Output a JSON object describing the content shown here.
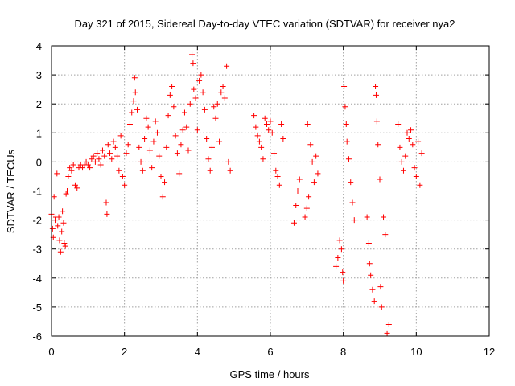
{
  "chart_data": {
    "type": "scatter",
    "title": "Day 321 of 2015, Sidereal Day-to-day VTEC variation (SDTVAR) for receiver nya2",
    "xlabel": "GPS time / hours",
    "ylabel": "SDTVAR / TECUs",
    "xlim": [
      0,
      12
    ],
    "ylim": [
      -6,
      4
    ],
    "x_ticks": [
      0,
      2,
      4,
      6,
      8,
      10,
      12
    ],
    "y_ticks": [
      -6,
      -5,
      -4,
      -3,
      -2,
      -1,
      0,
      1,
      2,
      3,
      4
    ],
    "x_tick_labels": [
      "0",
      "2",
      "4",
      "6",
      "8",
      "10",
      "12"
    ],
    "y_tick_labels": [
      "-6",
      "-5",
      "-4",
      "-3",
      "-2",
      "-1",
      "0",
      "1",
      "2",
      "3",
      "4"
    ],
    "grid": true,
    "marker": "+",
    "marker_color": "#ff0000",
    "series": [
      {
        "name": "nya2",
        "points": [
          [
            0.0,
            -1.8
          ],
          [
            0.03,
            -2.3
          ],
          [
            0.05,
            -2.6
          ],
          [
            0.07,
            -1.2
          ],
          [
            0.1,
            -2.0
          ],
          [
            0.12,
            -1.9
          ],
          [
            0.15,
            -0.4
          ],
          [
            0.17,
            -2.2
          ],
          [
            0.2,
            -1.9
          ],
          [
            0.22,
            -2.7
          ],
          [
            0.25,
            -3.1
          ],
          [
            0.28,
            -2.4
          ],
          [
            0.3,
            -1.7
          ],
          [
            0.33,
            -2.1
          ],
          [
            0.35,
            -2.8
          ],
          [
            0.38,
            -2.9
          ],
          [
            0.4,
            -1.1
          ],
          [
            0.43,
            -1.0
          ],
          [
            0.46,
            -0.5
          ],
          [
            0.5,
            -0.2
          ],
          [
            0.55,
            -0.3
          ],
          [
            0.6,
            -0.1
          ],
          [
            0.65,
            -0.8
          ],
          [
            0.7,
            -0.9
          ],
          [
            0.75,
            -0.2
          ],
          [
            0.8,
            -0.1
          ],
          [
            0.85,
            -0.2
          ],
          [
            0.9,
            -0.1
          ],
          [
            0.95,
            0.0
          ],
          [
            1.0,
            -0.1
          ],
          [
            1.05,
            -0.2
          ],
          [
            1.1,
            0.1
          ],
          [
            1.15,
            0.2
          ],
          [
            1.2,
            0.0
          ],
          [
            1.25,
            0.3
          ],
          [
            1.3,
            0.1
          ],
          [
            1.35,
            -0.1
          ],
          [
            1.4,
            0.4
          ],
          [
            1.45,
            0.2
          ],
          [
            1.5,
            -1.4
          ],
          [
            1.52,
            -1.8
          ],
          [
            1.55,
            0.6
          ],
          [
            1.6,
            0.3
          ],
          [
            1.65,
            0.1
          ],
          [
            1.7,
            0.7
          ],
          [
            1.75,
            0.5
          ],
          [
            1.8,
            0.2
          ],
          [
            1.85,
            -0.3
          ],
          [
            1.9,
            0.9
          ],
          [
            1.95,
            -0.5
          ],
          [
            2.0,
            -0.8
          ],
          [
            2.05,
            0.3
          ],
          [
            2.1,
            0.6
          ],
          [
            2.15,
            1.3
          ],
          [
            2.2,
            1.7
          ],
          [
            2.25,
            2.1
          ],
          [
            2.28,
            2.9
          ],
          [
            2.3,
            2.4
          ],
          [
            2.35,
            1.8
          ],
          [
            2.4,
            0.5
          ],
          [
            2.45,
            0.0
          ],
          [
            2.5,
            -0.3
          ],
          [
            2.55,
            0.8
          ],
          [
            2.6,
            1.5
          ],
          [
            2.65,
            1.2
          ],
          [
            2.7,
            0.4
          ],
          [
            2.75,
            -0.2
          ],
          [
            2.8,
            0.7
          ],
          [
            2.85,
            1.4
          ],
          [
            2.9,
            1.0
          ],
          [
            2.95,
            0.2
          ],
          [
            3.0,
            -0.5
          ],
          [
            3.05,
            -1.2
          ],
          [
            3.1,
            -0.7
          ],
          [
            3.15,
            0.5
          ],
          [
            3.2,
            1.6
          ],
          [
            3.25,
            2.3
          ],
          [
            3.3,
            2.6
          ],
          [
            3.35,
            1.9
          ],
          [
            3.4,
            0.9
          ],
          [
            3.45,
            0.3
          ],
          [
            3.5,
            -0.4
          ],
          [
            3.55,
            0.6
          ],
          [
            3.6,
            1.1
          ],
          [
            3.65,
            1.7
          ],
          [
            3.7,
            1.2
          ],
          [
            3.75,
            0.4
          ],
          [
            3.8,
            2.0
          ],
          [
            3.85,
            3.7
          ],
          [
            3.88,
            3.4
          ],
          [
            3.9,
            2.5
          ],
          [
            3.95,
            2.2
          ],
          [
            4.0,
            1.1
          ],
          [
            4.05,
            2.8
          ],
          [
            4.1,
            3.0
          ],
          [
            4.15,
            2.4
          ],
          [
            4.2,
            1.8
          ],
          [
            4.25,
            0.8
          ],
          [
            4.3,
            0.1
          ],
          [
            4.35,
            -0.3
          ],
          [
            4.4,
            0.5
          ],
          [
            4.45,
            1.9
          ],
          [
            4.5,
            1.5
          ],
          [
            4.55,
            2.0
          ],
          [
            4.6,
            0.7
          ],
          [
            4.65,
            2.4
          ],
          [
            4.7,
            2.6
          ],
          [
            4.75,
            2.2
          ],
          [
            4.8,
            3.3
          ],
          [
            4.85,
            0.0
          ],
          [
            4.9,
            -0.3
          ],
          [
            5.55,
            1.6
          ],
          [
            5.6,
            1.2
          ],
          [
            5.65,
            0.9
          ],
          [
            5.7,
            0.7
          ],
          [
            5.75,
            0.5
          ],
          [
            5.8,
            0.1
          ],
          [
            5.85,
            1.5
          ],
          [
            5.9,
            1.3
          ],
          [
            5.95,
            1.1
          ],
          [
            6.0,
            1.4
          ],
          [
            6.05,
            1.0
          ],
          [
            6.1,
            0.3
          ],
          [
            6.15,
            -0.3
          ],
          [
            6.2,
            -0.5
          ],
          [
            6.25,
            -0.8
          ],
          [
            6.3,
            1.3
          ],
          [
            6.35,
            0.8
          ],
          [
            6.65,
            -2.1
          ],
          [
            6.7,
            -1.5
          ],
          [
            6.75,
            -1.0
          ],
          [
            6.8,
            -0.6
          ],
          [
            6.95,
            -1.9
          ],
          [
            7.0,
            -1.6
          ],
          [
            7.02,
            1.3
          ],
          [
            7.05,
            -1.2
          ],
          [
            7.1,
            0.6
          ],
          [
            7.15,
            0.0
          ],
          [
            7.2,
            -0.7
          ],
          [
            7.25,
            0.2
          ],
          [
            7.3,
            -0.4
          ],
          [
            7.8,
            -3.6
          ],
          [
            7.85,
            -3.3
          ],
          [
            7.9,
            -2.7
          ],
          [
            7.95,
            -3.0
          ],
          [
            7.98,
            -3.8
          ],
          [
            8.0,
            -4.1
          ],
          [
            8.02,
            2.6
          ],
          [
            8.05,
            1.9
          ],
          [
            8.08,
            1.3
          ],
          [
            8.1,
            0.7
          ],
          [
            8.15,
            0.1
          ],
          [
            8.2,
            -0.7
          ],
          [
            8.25,
            -1.4
          ],
          [
            8.3,
            -2.0
          ],
          [
            8.65,
            -1.9
          ],
          [
            8.7,
            -2.8
          ],
          [
            8.72,
            -3.5
          ],
          [
            8.75,
            -3.9
          ],
          [
            8.8,
            -4.4
          ],
          [
            8.85,
            -4.8
          ],
          [
            8.88,
            2.6
          ],
          [
            8.9,
            2.3
          ],
          [
            8.92,
            1.4
          ],
          [
            8.95,
            0.6
          ],
          [
            9.0,
            -0.6
          ],
          [
            9.02,
            -4.3
          ],
          [
            9.05,
            -5.0
          ],
          [
            9.1,
            -1.9
          ],
          [
            9.15,
            -2.5
          ],
          [
            9.2,
            -5.9
          ],
          [
            9.25,
            -5.6
          ],
          [
            9.5,
            1.3
          ],
          [
            9.55,
            0.5
          ],
          [
            9.6,
            0.0
          ],
          [
            9.65,
            -0.3
          ],
          [
            9.7,
            0.2
          ],
          [
            9.75,
            1.0
          ],
          [
            9.8,
            0.8
          ],
          [
            9.85,
            1.1
          ],
          [
            9.9,
            0.6
          ],
          [
            9.95,
            -0.2
          ],
          [
            10.0,
            -0.5
          ],
          [
            10.05,
            0.7
          ],
          [
            10.1,
            -0.8
          ],
          [
            10.15,
            0.3
          ]
        ]
      }
    ]
  }
}
